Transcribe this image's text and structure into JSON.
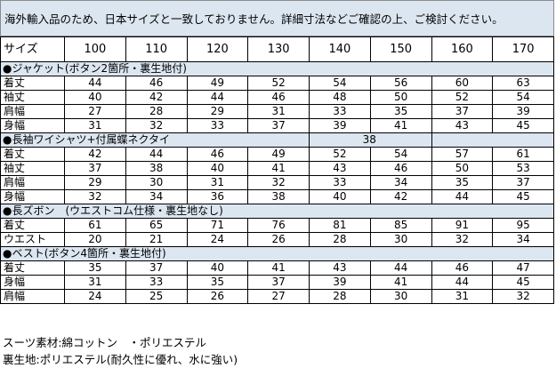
{
  "notice": "海外輸入品のため、日本サイズと一致しておりません。詳細寸法などご確認の上、ご検討ください。",
  "size_label": "サイズ",
  "sizes": [
    "100",
    "110",
    "120",
    "130",
    "140",
    "150",
    "160",
    "170"
  ],
  "sections": [
    {
      "title": "●ジャケット(ボタン2箇所・裏生地付)",
      "rows": [
        {
          "label": "着丈",
          "values": [
            "44",
            "46",
            "49",
            "52",
            "54",
            "56",
            "60",
            "63"
          ]
        },
        {
          "label": "袖丈",
          "values": [
            "40",
            "42",
            "44",
            "46",
            "48",
            "50",
            "52",
            "54"
          ]
        },
        {
          "label": "肩幅",
          "values": [
            "27",
            "28",
            "29",
            "31",
            "33",
            "35",
            "37",
            "39"
          ]
        },
        {
          "label": "身幅",
          "values": [
            "31",
            "32",
            "33",
            "37",
            "39",
            "41",
            "43",
            "45"
          ]
        }
      ]
    },
    {
      "title": "●長袖ワイシャツ+付属蝶ネクタイ",
      "note": "38",
      "rows": [
        {
          "label": "着丈",
          "values": [
            "42",
            "44",
            "46",
            "49",
            "52",
            "54",
            "57",
            "61"
          ]
        },
        {
          "label": "袖丈",
          "values": [
            "37",
            "38",
            "40",
            "41",
            "43",
            "46",
            "50",
            "53"
          ]
        },
        {
          "label": "肩幅",
          "values": [
            "29",
            "30",
            "31",
            "32",
            "33",
            "34",
            "35",
            "37"
          ]
        },
        {
          "label": "身幅",
          "values": [
            "32",
            "34",
            "36",
            "38",
            "40",
            "42",
            "44",
            "45"
          ]
        }
      ]
    },
    {
      "title": "●長ズボン　(ウエストコム仕様・裏生地なし)",
      "rows": [
        {
          "label": "着丈",
          "values": [
            "61",
            "65",
            "71",
            "76",
            "81",
            "85",
            "91",
            "95"
          ]
        },
        {
          "label": "ウエスト",
          "values": [
            "20",
            "21",
            "24",
            "26",
            "28",
            "30",
            "32",
            "34"
          ]
        }
      ]
    },
    {
      "title": "●ベスト(ボタン4箇所・裏生地付)",
      "rows": [
        {
          "label": "着丈",
          "values": [
            "35",
            "37",
            "40",
            "41",
            "43",
            "44",
            "46",
            "47"
          ]
        },
        {
          "label": "身幅",
          "values": [
            "31",
            "33",
            "35",
            "37",
            "39",
            "41",
            "44",
            "45"
          ]
        },
        {
          "label": "肩幅",
          "values": [
            "24",
            "25",
            "26",
            "27",
            "28",
            "30",
            "31",
            "32"
          ]
        }
      ]
    }
  ],
  "footer": {
    "line1": "スーツ素材:綿コットン　・ポリエステル",
    "line2": "裏生地:ポリエステル(耐久性に優れ、水に強い)"
  }
}
